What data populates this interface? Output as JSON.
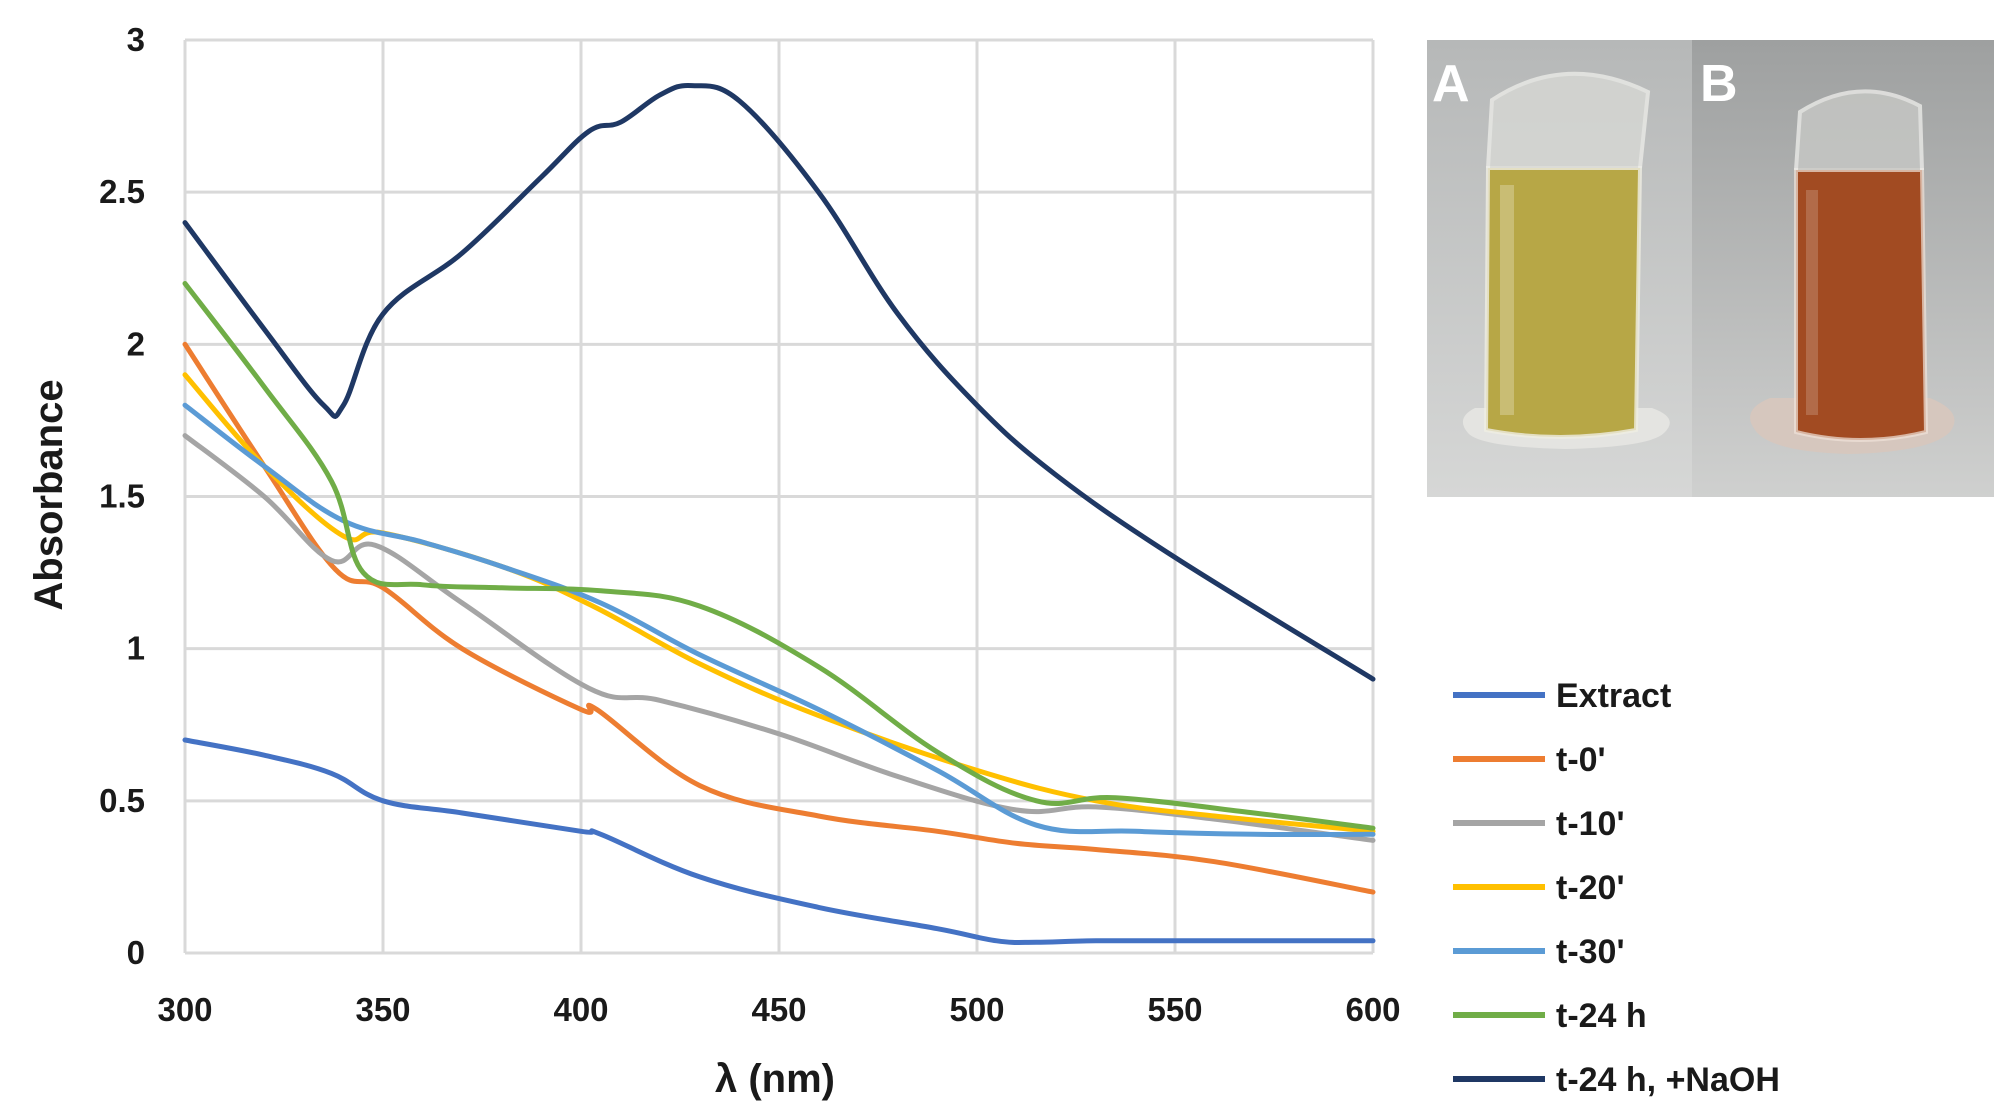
{
  "chart_data": {
    "type": "line",
    "title": "",
    "xlabel": "λ (nm)",
    "ylabel": "Absorbance",
    "xlim": [
      300,
      600
    ],
    "ylim": [
      0,
      3
    ],
    "xticks": [
      300,
      350,
      400,
      450,
      500,
      550,
      600
    ],
    "yticks": [
      0,
      0.5,
      1,
      1.5,
      2,
      2.5,
      3
    ],
    "ytick_labels": [
      "0",
      "0.5",
      "1",
      "1.5",
      "2",
      "2.5",
      "3"
    ],
    "grid": true,
    "legend_position": "bottom-right",
    "series": [
      {
        "name": "Extract",
        "color": "#4472C4",
        "x": [
          300,
          320,
          337,
          350,
          370,
          400,
          405,
          430,
          460,
          490,
          505,
          515,
          530,
          560,
          600
        ],
        "y": [
          0.7,
          0.65,
          0.59,
          0.5,
          0.46,
          0.4,
          0.39,
          0.25,
          0.15,
          0.08,
          0.04,
          0.035,
          0.04,
          0.04,
          0.04
        ]
      },
      {
        "name": "t-0'",
        "color": "#ED7D31",
        "x": [
          300,
          320,
          338,
          350,
          370,
          400,
          404,
          430,
          460,
          490,
          510,
          530,
          560,
          600
        ],
        "y": [
          2.0,
          1.6,
          1.26,
          1.2,
          1.0,
          0.8,
          0.8,
          0.55,
          0.45,
          0.4,
          0.36,
          0.34,
          0.3,
          0.2
        ]
      },
      {
        "name": "t-10'",
        "color": "#A5A5A5",
        "x": [
          300,
          320,
          337,
          348,
          370,
          402,
          420,
          450,
          480,
          510,
          530,
          560,
          600
        ],
        "y": [
          1.7,
          1.5,
          1.29,
          1.34,
          1.15,
          0.87,
          0.83,
          0.72,
          0.58,
          0.47,
          0.48,
          0.44,
          0.37
        ]
      },
      {
        "name": "t-20'",
        "color": "#FFC000",
        "x": [
          300,
          320,
          340,
          350,
          380,
          403,
          430,
          460,
          500,
          530,
          560,
          600
        ],
        "y": [
          1.9,
          1.6,
          1.37,
          1.38,
          1.27,
          1.14,
          0.95,
          0.78,
          0.6,
          0.5,
          0.45,
          0.4
        ]
      },
      {
        "name": "t-30'",
        "color": "#5B9BD5",
        "x": [
          300,
          320,
          340,
          360,
          380,
          405,
          430,
          460,
          490,
          515,
          540,
          570,
          600
        ],
        "y": [
          1.8,
          1.6,
          1.42,
          1.35,
          1.27,
          1.15,
          0.98,
          0.8,
          0.6,
          0.42,
          0.4,
          0.39,
          0.39
        ]
      },
      {
        "name": "t-24 h",
        "color": "#70AD47",
        "x": [
          300,
          320,
          337,
          345,
          360,
          380,
          405,
          430,
          460,
          490,
          515,
          535,
          570,
          600
        ],
        "y": [
          2.2,
          1.86,
          1.55,
          1.25,
          1.21,
          1.2,
          1.19,
          1.14,
          0.94,
          0.66,
          0.5,
          0.51,
          0.46,
          0.41
        ]
      },
      {
        "name": "t-24 h, +NaOH",
        "color": "#1F3864",
        "x": [
          300,
          320,
          335,
          340,
          350,
          370,
          390,
          402,
          410,
          420,
          428,
          440,
          460,
          480,
          500,
          520,
          550,
          600
        ],
        "y": [
          2.4,
          2.05,
          1.8,
          1.8,
          2.1,
          2.3,
          2.55,
          2.7,
          2.73,
          2.82,
          2.85,
          2.8,
          2.5,
          2.1,
          1.8,
          1.57,
          1.3,
          0.9
        ]
      }
    ]
  },
  "inset_photo": {
    "panels": [
      {
        "label": "A",
        "liquid_color": "#b7a746"
      },
      {
        "label": "B",
        "liquid_color": "#a24b22"
      }
    ]
  }
}
